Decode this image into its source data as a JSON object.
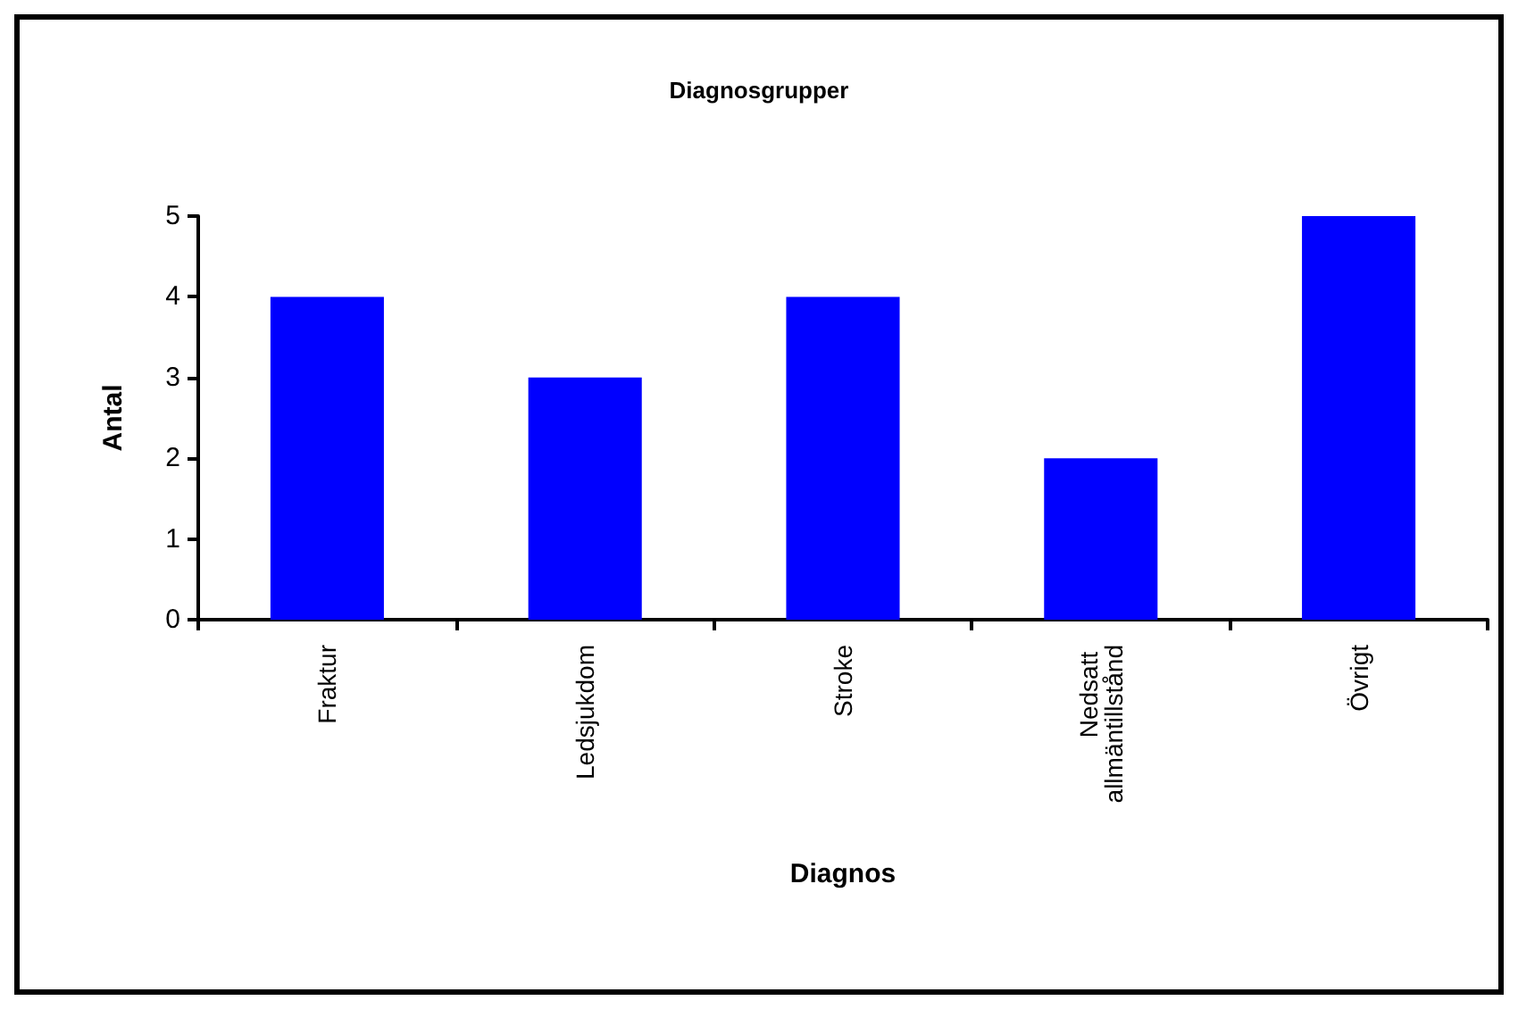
{
  "chart_data": {
    "type": "bar",
    "title": "Diagnosgrupper",
    "xlabel": "Diagnos",
    "ylabel": "Antal",
    "categories": [
      "Fraktur",
      "Ledsjukdom",
      "Stroke",
      "Nedsatt allmäntillstånd",
      "Övrigt"
    ],
    "values": [
      4,
      3,
      4,
      2,
      5
    ],
    "color": "#0000ff",
    "ylim": [
      0,
      5
    ],
    "yticks": [
      0,
      1,
      2,
      3,
      4,
      5
    ],
    "grid": false
  }
}
